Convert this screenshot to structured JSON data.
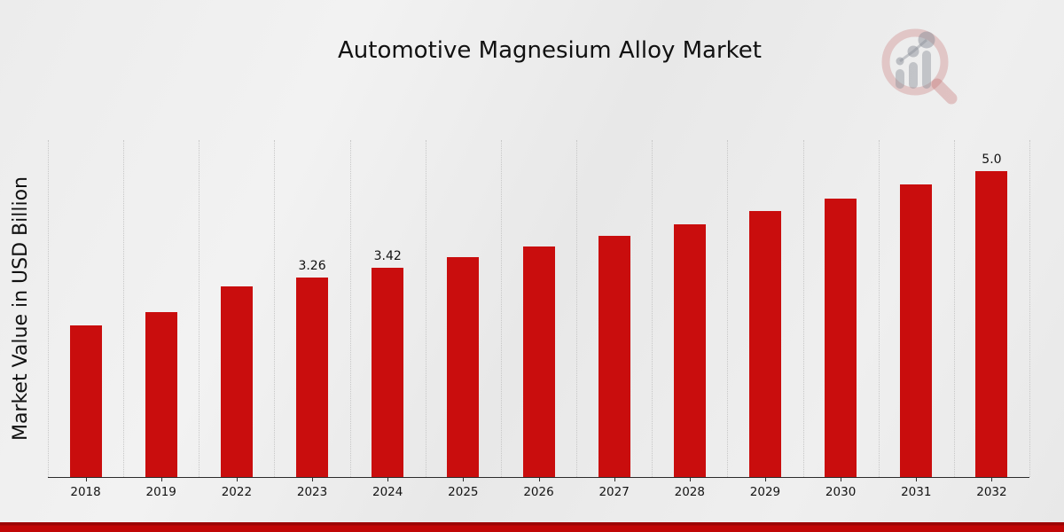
{
  "chart_data": {
    "type": "bar",
    "title": "Automotive Magnesium Alloy Market",
    "xlabel": "",
    "ylabel": "Market Value in USD Billion",
    "categories": [
      "2018",
      "2019",
      "2022",
      "2023",
      "2024",
      "2025",
      "2026",
      "2027",
      "2028",
      "2029",
      "2030",
      "2031",
      "2032"
    ],
    "values": [
      2.48,
      2.69,
      3.11,
      3.26,
      3.42,
      3.59,
      3.76,
      3.94,
      4.13,
      4.34,
      4.55,
      4.77,
      5.0
    ],
    "data_labels": {
      "2023": "3.26",
      "2024": "3.42",
      "2032": "5.0"
    },
    "ylim": [
      0,
      5.5
    ],
    "grid": "vertical dotted gridlines at category boundaries, no horizontal gridlines, no y tick labels",
    "legend_position": "none",
    "bar_color": "#c90d0d",
    "axis_line_color": "#2b2b2b",
    "gridline_color": "#c7c7c7",
    "accent_band_dark": "#9c0404",
    "accent_band_bright": "#c10606"
  },
  "watermark": {
    "icon": "magnifier-bar-chart-logo"
  }
}
